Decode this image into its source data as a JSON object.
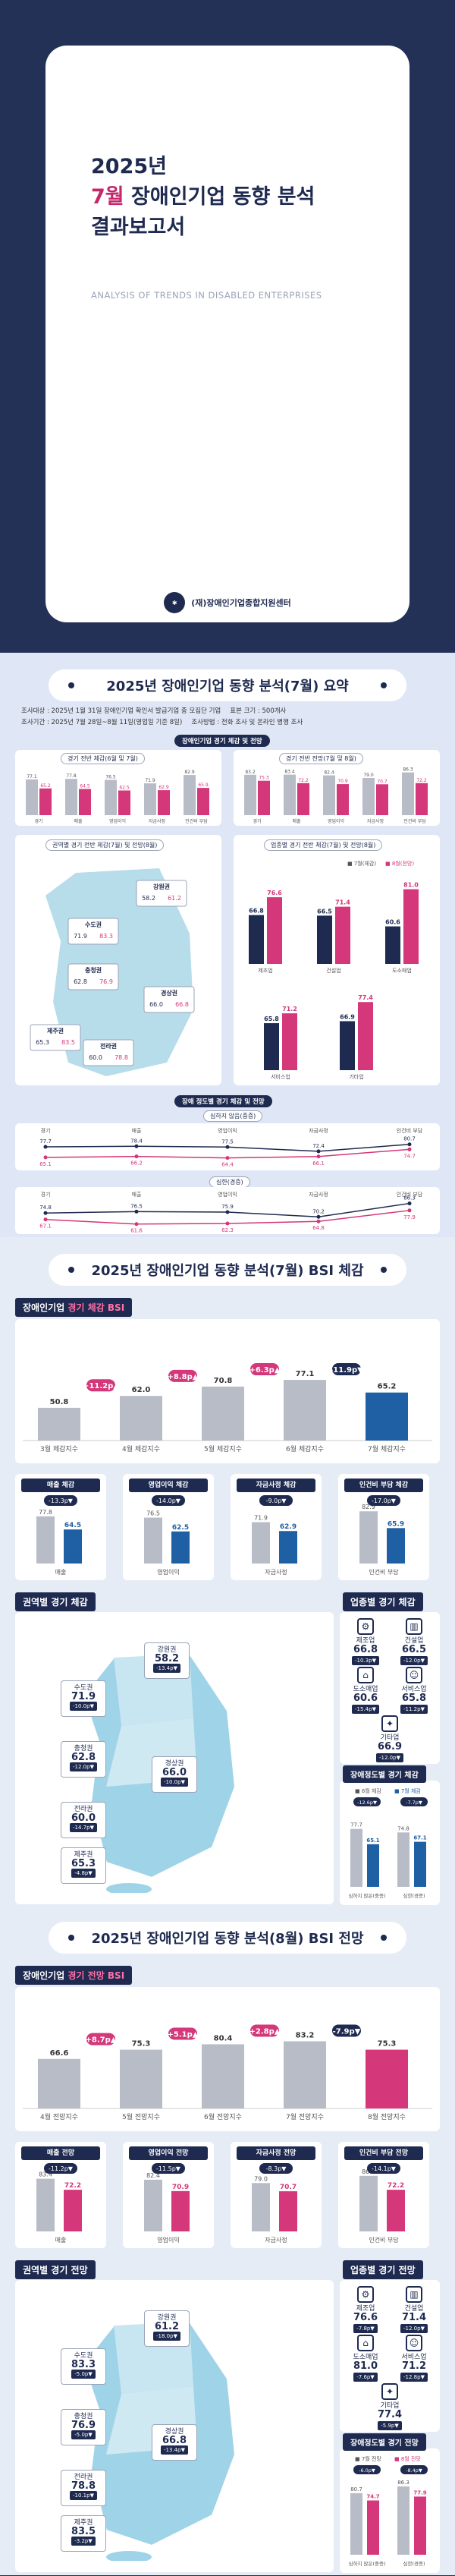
{
  "cover": {
    "title_line1": "2025년",
    "title_line2_accent": "7월",
    "title_line2_rest": " 장애인기업 동향 분석",
    "title_line3": "결과보고서",
    "subtitle": "ANALYSIS OF TRENDS IN DISABLED ENTERPRISES",
    "org": "(재)장애인기업종합지원센터"
  },
  "summary": {
    "heading": "2025년 장애인기업 동향 분석(7월) 요약",
    "meta": [
      "조사대상 : 2025년 1월 31일 장애인기업 확인서 발급기업 중 모집단 기업",
      "표본 크기 : 500개사",
      "조사기간 : 2025년 7월 28일~8월 11일(영업일 기준 8일)",
      "조사방법 : 전화 조사 및 온라인 병행 조사"
    ],
    "tag_current": "장애인기업 경기 체감 및 전망",
    "left_caption": "경기 전반 체감(6월 및 7월)",
    "right_caption": "경기 전반 전망(7월 및 8월)",
    "region_caption": "권역별 경기 전반 체감(7월) 및 전망(8월)",
    "industry_caption": "업종별 경기 전반 체감(7월) 및 전망(8월)",
    "size_tag": "장애 정도별 경기 체감 및 전망",
    "severe_caption": "심하지 않음(중증)",
    "mild_caption": "심한(경증)"
  },
  "bsi_current": {
    "heading": "2025년 장애인기업 동향 분석(7월) BSI 체감",
    "label": "장애인기업",
    "label_accent": "경기 체감 BSI",
    "chart_data": {
      "type": "bar",
      "categories": [
        "3월 체감지수",
        "4월 체감지수",
        "5월 체감지수",
        "6월 체감지수",
        "7월 체감지수"
      ],
      "values": [
        50.8,
        62.0,
        70.8,
        77.1,
        65.2
      ],
      "deltas": [
        "+11.2p▲",
        "+8.8p▲",
        "+6.3p▲",
        "-11.9p▼"
      ]
    },
    "sub_cards": [
      {
        "title": "매출 체감",
        "delta": "-13.3p▼",
        "prev": 77.8,
        "cur": 64.5,
        "xlabel": "매출"
      },
      {
        "title": "영업이익 체감",
        "delta": "-14.0p▼",
        "prev": 76.5,
        "cur": 62.5,
        "xlabel": "영업이익"
      },
      {
        "title": "자금사정 체감",
        "delta": "-9.0p▼",
        "prev": 71.9,
        "cur": 62.9,
        "xlabel": "자금사정"
      },
      {
        "title": "인건비 부담 체감",
        "delta": "-17.0p▼",
        "prev": 82.9,
        "cur": 65.9,
        "xlabel": "인건비 부담"
      }
    ],
    "region_label": "권역별 경기 체감",
    "regions": [
      {
        "name": "수도권",
        "value": 71.9,
        "chg": "-10.0p▼"
      },
      {
        "name": "강원권",
        "value": 58.2,
        "chg": "-13.4p▼"
      },
      {
        "name": "충청권",
        "value": 62.8,
        "chg": "-12.0p▼"
      },
      {
        "name": "경상권",
        "value": 66.0,
        "chg": "-10.0p▼"
      },
      {
        "name": "전라권",
        "value": 60.0,
        "chg": "-14.7p▼"
      },
      {
        "name": "제주권",
        "value": 65.3,
        "chg": "-4.8p▼"
      }
    ],
    "industry_label": "업종별 경기 체감",
    "industries": [
      {
        "name": "제조업",
        "value": 66.8,
        "chg": "-10.3p▼",
        "icon": "⚙"
      },
      {
        "name": "건설업",
        "value": 66.5,
        "chg": "-12.0p▼",
        "icon": "▥"
      },
      {
        "name": "도소매업",
        "value": 60.6,
        "chg": "-15.4p▼",
        "icon": "⌂"
      },
      {
        "name": "서비스업",
        "value": 65.8,
        "chg": "-11.2p▼",
        "icon": "☺"
      },
      {
        "name": "기타업",
        "value": 66.9,
        "chg": "-12.0p▼",
        "icon": "✦"
      }
    ],
    "size_label": "장애정도별 경기 체감",
    "size_legend": [
      "6월 체감",
      "7월 체감"
    ],
    "sizes": [
      {
        "name": "심하지 않은(중증)",
        "prev": 77.7,
        "cur": 65.1,
        "delta": "-12.6p▼"
      },
      {
        "name": "심한(경증)",
        "prev": 74.8,
        "cur": 67.1,
        "delta": "-7.7p▼"
      }
    ]
  },
  "bsi_forecast": {
    "heading": "2025년 장애인기업 동향 분석(8월) BSI 전망",
    "label": "장애인기업",
    "label_accent": "경기 전망 BSI",
    "chart_data": {
      "type": "bar",
      "categories": [
        "4월 전망지수",
        "5월 전망지수",
        "6월 전망지수",
        "7월 전망지수",
        "8월 전망지수"
      ],
      "values": [
        66.6,
        75.3,
        80.4,
        83.2,
        75.3
      ],
      "deltas": [
        "+8.7p▲",
        "+5.1p▲",
        "+2.8p▲",
        "-7.9p▼"
      ]
    },
    "sub_cards": [
      {
        "title": "매출 전망",
        "delta": "-11.2p▼",
        "prev": 83.4,
        "cur": 72.2,
        "xlabel": "매출"
      },
      {
        "title": "영업이익 전망",
        "delta": "-11.5p▼",
        "prev": 82.4,
        "cur": 70.9,
        "xlabel": "영업이익"
      },
      {
        "title": "자금사정 전망",
        "delta": "-8.3p▼",
        "prev": 79.0,
        "cur": 70.7,
        "xlabel": "자금사정"
      },
      {
        "title": "인건비 부담 전망",
        "delta": "-14.1p▼",
        "prev": 86.3,
        "cur": 72.2,
        "xlabel": "인건비 부담"
      }
    ],
    "region_label": "권역별 경기 전망",
    "regions": [
      {
        "name": "수도권",
        "value": 83.3,
        "chg": "-5.0p▼"
      },
      {
        "name": "강원권",
        "value": 61.2,
        "chg": "-18.0p▼"
      },
      {
        "name": "충청권",
        "value": 76.9,
        "chg": "-5.0p▼"
      },
      {
        "name": "경상권",
        "value": 66.8,
        "chg": "-13.4p▼"
      },
      {
        "name": "전라권",
        "value": 78.8,
        "chg": "-10.1p▼"
      },
      {
        "name": "제주권",
        "value": 83.5,
        "chg": "-3.2p▼"
      }
    ],
    "industry_label": "업종별 경기 전망",
    "industries": [
      {
        "name": "제조업",
        "value": 76.6,
        "chg": "-7.8p▼",
        "icon": "⚙"
      },
      {
        "name": "건설업",
        "value": 71.4,
        "chg": "-12.0p▼",
        "icon": "▥"
      },
      {
        "name": "도소매업",
        "value": 81.0,
        "chg": "-7.6p▼",
        "icon": "⌂"
      },
      {
        "name": "서비스업",
        "value": 71.2,
        "chg": "-12.8p▼",
        "icon": "☺"
      },
      {
        "name": "기타업",
        "value": 77.4,
        "chg": "-5.9p▼",
        "icon": "✦"
      }
    ],
    "size_label": "장애정도별 경기 전망",
    "size_legend": [
      "7월 전망",
      "8월 전망"
    ],
    "sizes": [
      {
        "name": "심하지 않은(중증)",
        "prev": 80.7,
        "cur": 74.7,
        "delta": "-6.0p▼"
      },
      {
        "name": "심한(경증)",
        "prev": 86.3,
        "cur": 77.9,
        "delta": "-8.4p▼"
      }
    ]
  },
  "summary_charts": {
    "left_values": [
      77.1,
      65.2,
      77.8,
      64.5,
      76.5,
      62.5,
      71.9,
      62.9,
      82.9,
      65.9
    ],
    "left_labels": [
      "경기",
      "매출",
      "영업이익",
      "자금사정",
      "인건비 부담"
    ],
    "right_values": [
      83.2,
      75.3,
      83.4,
      72.2,
      82.4,
      70.9,
      79.0,
      70.7,
      86.3,
      72.2
    ],
    "right_labels": [
      "경기",
      "매출",
      "영업이익",
      "자금사정",
      "인건비 부담"
    ],
    "industry_pairs": [
      [
        66.8,
        76.6
      ],
      [
        66.5,
        71.4
      ],
      [
        60.6,
        81.0
      ],
      [
        65.8,
        71.2
      ],
      [
        66.9,
        77.4
      ]
    ],
    "industry_names": [
      "제조업",
      "건설업",
      "도소매업",
      "서비스업",
      "기타업"
    ],
    "region_pairs": [
      [
        "강원권",
        58.2,
        61.2
      ],
      [
        "수도권",
        71.9,
        83.3
      ],
      [
        "충청권",
        62.8,
        76.9
      ],
      [
        "경상권",
        66.0,
        66.8
      ],
      [
        "제주권",
        65.3,
        83.5
      ],
      [
        "전라권",
        60.0,
        78.8
      ]
    ],
    "legend_prev": "7월(체감)",
    "legend_next": "8월(전망)"
  },
  "colors": {
    "navy": "#1e2a4f",
    "pink": "#d4377a",
    "blue": "#1f5fa3",
    "grey": "#b8bcc6"
  }
}
